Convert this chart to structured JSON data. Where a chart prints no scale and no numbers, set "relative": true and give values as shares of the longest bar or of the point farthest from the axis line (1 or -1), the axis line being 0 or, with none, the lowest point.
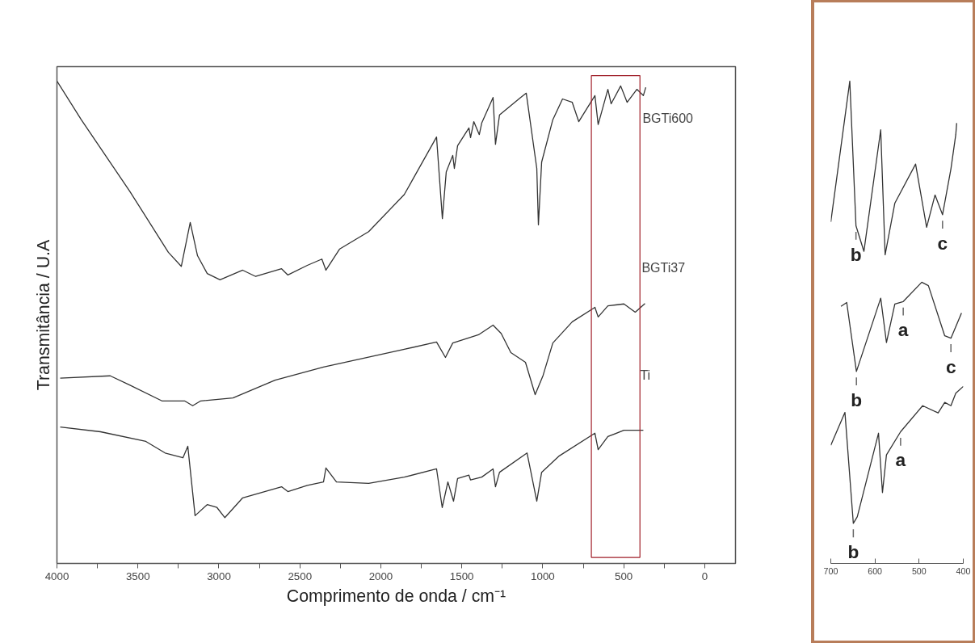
{
  "chart_data": [
    {
      "type": "line",
      "relative": true,
      "xlabel": "Comprimento de onda / cm⁻¹",
      "ylabel": "Transmitância / U.A",
      "xlim": [
        4000,
        -190
      ],
      "xticks": [
        4000,
        {
          "value": 3750,
          "label": null
        },
        3500,
        {
          "value": 3250,
          "label": null
        },
        3000,
        {
          "value": 2750,
          "label": null
        },
        2500,
        {
          "value": 2250,
          "label": null
        },
        2000,
        {
          "value": 1750,
          "label": null
        },
        1500,
        {
          "value": 1250,
          "label": null
        },
        1000,
        {
          "value": 750,
          "label": null
        },
        500,
        {
          "value": 250,
          "label": null
        },
        0
      ],
      "tick_labels": "x",
      "grid": false,
      "marker": "none",
      "line_style": "solid",
      "series": [
        {
          "name": "BGTi600",
          "color": "#333333",
          "x": [
            4000,
            3850,
            3551,
            3312,
            3232,
            3177,
            3132,
            3072,
            2993,
            2853,
            2773,
            2613,
            2574,
            2454,
            2364,
            2339,
            2254,
            2075,
            1855,
            1656,
            1620,
            1596,
            1556,
            1546,
            1526,
            1456,
            1446,
            1426,
            1392,
            1377,
            1307,
            1292,
            1267,
            1137,
            1102,
            1037,
            1027,
            1007,
            938,
            878,
            818,
            778,
            678,
            658,
            598,
            578,
            519,
            479,
            419,
            379,
            364
          ],
          "values": [
            1.0,
            0.92,
            0.772,
            0.645,
            0.616,
            0.707,
            0.638,
            0.601,
            0.588,
            0.608,
            0.595,
            0.611,
            0.598,
            0.618,
            0.631,
            0.608,
            0.652,
            0.688,
            0.765,
            0.884,
            0.715,
            0.812,
            0.846,
            0.819,
            0.866,
            0.903,
            0.883,
            0.916,
            0.889,
            0.913,
            0.966,
            0.869,
            0.93,
            0.966,
            0.975,
            0.819,
            0.702,
            0.832,
            0.92,
            0.963,
            0.956,
            0.916,
            0.97,
            0.91,
            0.983,
            0.953,
            0.99,
            0.956,
            0.983,
            0.97,
            0.987
          ]
        },
        {
          "name": "BGTi37",
          "color": "#333333",
          "x": [
            3980,
            3671,
            3551,
            3352,
            3212,
            3162,
            3112,
            2913,
            2653,
            2354,
            1855,
            1656,
            1601,
            1556,
            1397,
            1307,
            1257,
            1197,
            1107,
            1047,
            998,
            938,
            818,
            678,
            658,
            598,
            499,
            429,
            369
          ],
          "values": [
            0.384,
            0.389,
            0.37,
            0.337,
            0.337,
            0.327,
            0.337,
            0.343,
            0.38,
            0.407,
            0.444,
            0.459,
            0.427,
            0.457,
            0.474,
            0.494,
            0.477,
            0.437,
            0.417,
            0.35,
            0.39,
            0.457,
            0.501,
            0.531,
            0.511,
            0.534,
            0.538,
            0.521,
            0.539
          ]
        },
        {
          "name": "Ti",
          "color": "#333333",
          "x": [
            3980,
            3731,
            3451,
            3332,
            3222,
            3192,
            3147,
            3072,
            3012,
            2963,
            2853,
            2613,
            2574,
            2454,
            2354,
            2339,
            2274,
            2075,
            1855,
            1656,
            1621,
            1586,
            1551,
            1526,
            1456,
            1446,
            1377,
            1307,
            1292,
            1267,
            1097,
            1037,
            1007,
            898,
            678,
            658,
            598,
            499,
            379
          ],
          "values": [
            0.283,
            0.273,
            0.253,
            0.229,
            0.219,
            0.243,
            0.099,
            0.122,
            0.116,
            0.095,
            0.136,
            0.159,
            0.149,
            0.162,
            0.169,
            0.198,
            0.169,
            0.166,
            0.179,
            0.196,
            0.116,
            0.169,
            0.129,
            0.176,
            0.183,
            0.173,
            0.179,
            0.196,
            0.159,
            0.189,
            0.229,
            0.129,
            0.189,
            0.223,
            0.27,
            0.236,
            0.263,
            0.276,
            0.276
          ]
        }
      ]
    },
    {
      "type": "line",
      "relative": true,
      "xlim": [
        700,
        400
      ],
      "xticks": [
        700,
        600,
        500,
        400
      ],
      "tick_labels": "x",
      "grid": false,
      "marker": "none",
      "line_style": "solid",
      "series": [
        {
          "color": "#333333",
          "x": [
            700,
            657,
            643,
            625,
            587,
            577,
            555,
            508,
            483,
            464,
            447,
            428,
            417,
            415
          ],
          "values": [
            0.708,
            1.0,
            0.7,
            0.647,
            0.899,
            0.64,
            0.747,
            0.828,
            0.697,
            0.764,
            0.723,
            0.818,
            0.889,
            0.913
          ]
        },
        {
          "color": "#333333",
          "x": [
            677,
            664,
            642,
            587,
            574,
            555,
            536,
            494,
            479,
            442,
            428,
            404
          ],
          "values": [
            0.533,
            0.541,
            0.398,
            0.55,
            0.458,
            0.538,
            0.543,
            0.583,
            0.576,
            0.472,
            0.467,
            0.519
          ]
        },
        {
          "color": "#333333",
          "x": [
            700,
            668,
            649,
            640,
            592,
            583,
            574,
            542,
            492,
            457,
            442,
            428,
            417,
            400
          ],
          "values": [
            0.245,
            0.313,
            0.083,
            0.097,
            0.27,
            0.147,
            0.225,
            0.273,
            0.327,
            0.312,
            0.334,
            0.327,
            0.353,
            0.367
          ]
        }
      ],
      "annotations": [
        {
          "text": "b",
          "x": 643,
          "y": 0.7
        },
        {
          "text": "c",
          "x": 447,
          "y": 0.723
        },
        {
          "text": "a",
          "x": 536,
          "y": 0.543
        },
        {
          "text": "c",
          "x": 428,
          "y": 0.467
        },
        {
          "text": "b",
          "x": 642,
          "y": 0.398
        },
        {
          "text": "a",
          "x": 542,
          "y": 0.273
        },
        {
          "text": "b",
          "x": 649,
          "y": 0.083
        }
      ]
    }
  ]
}
